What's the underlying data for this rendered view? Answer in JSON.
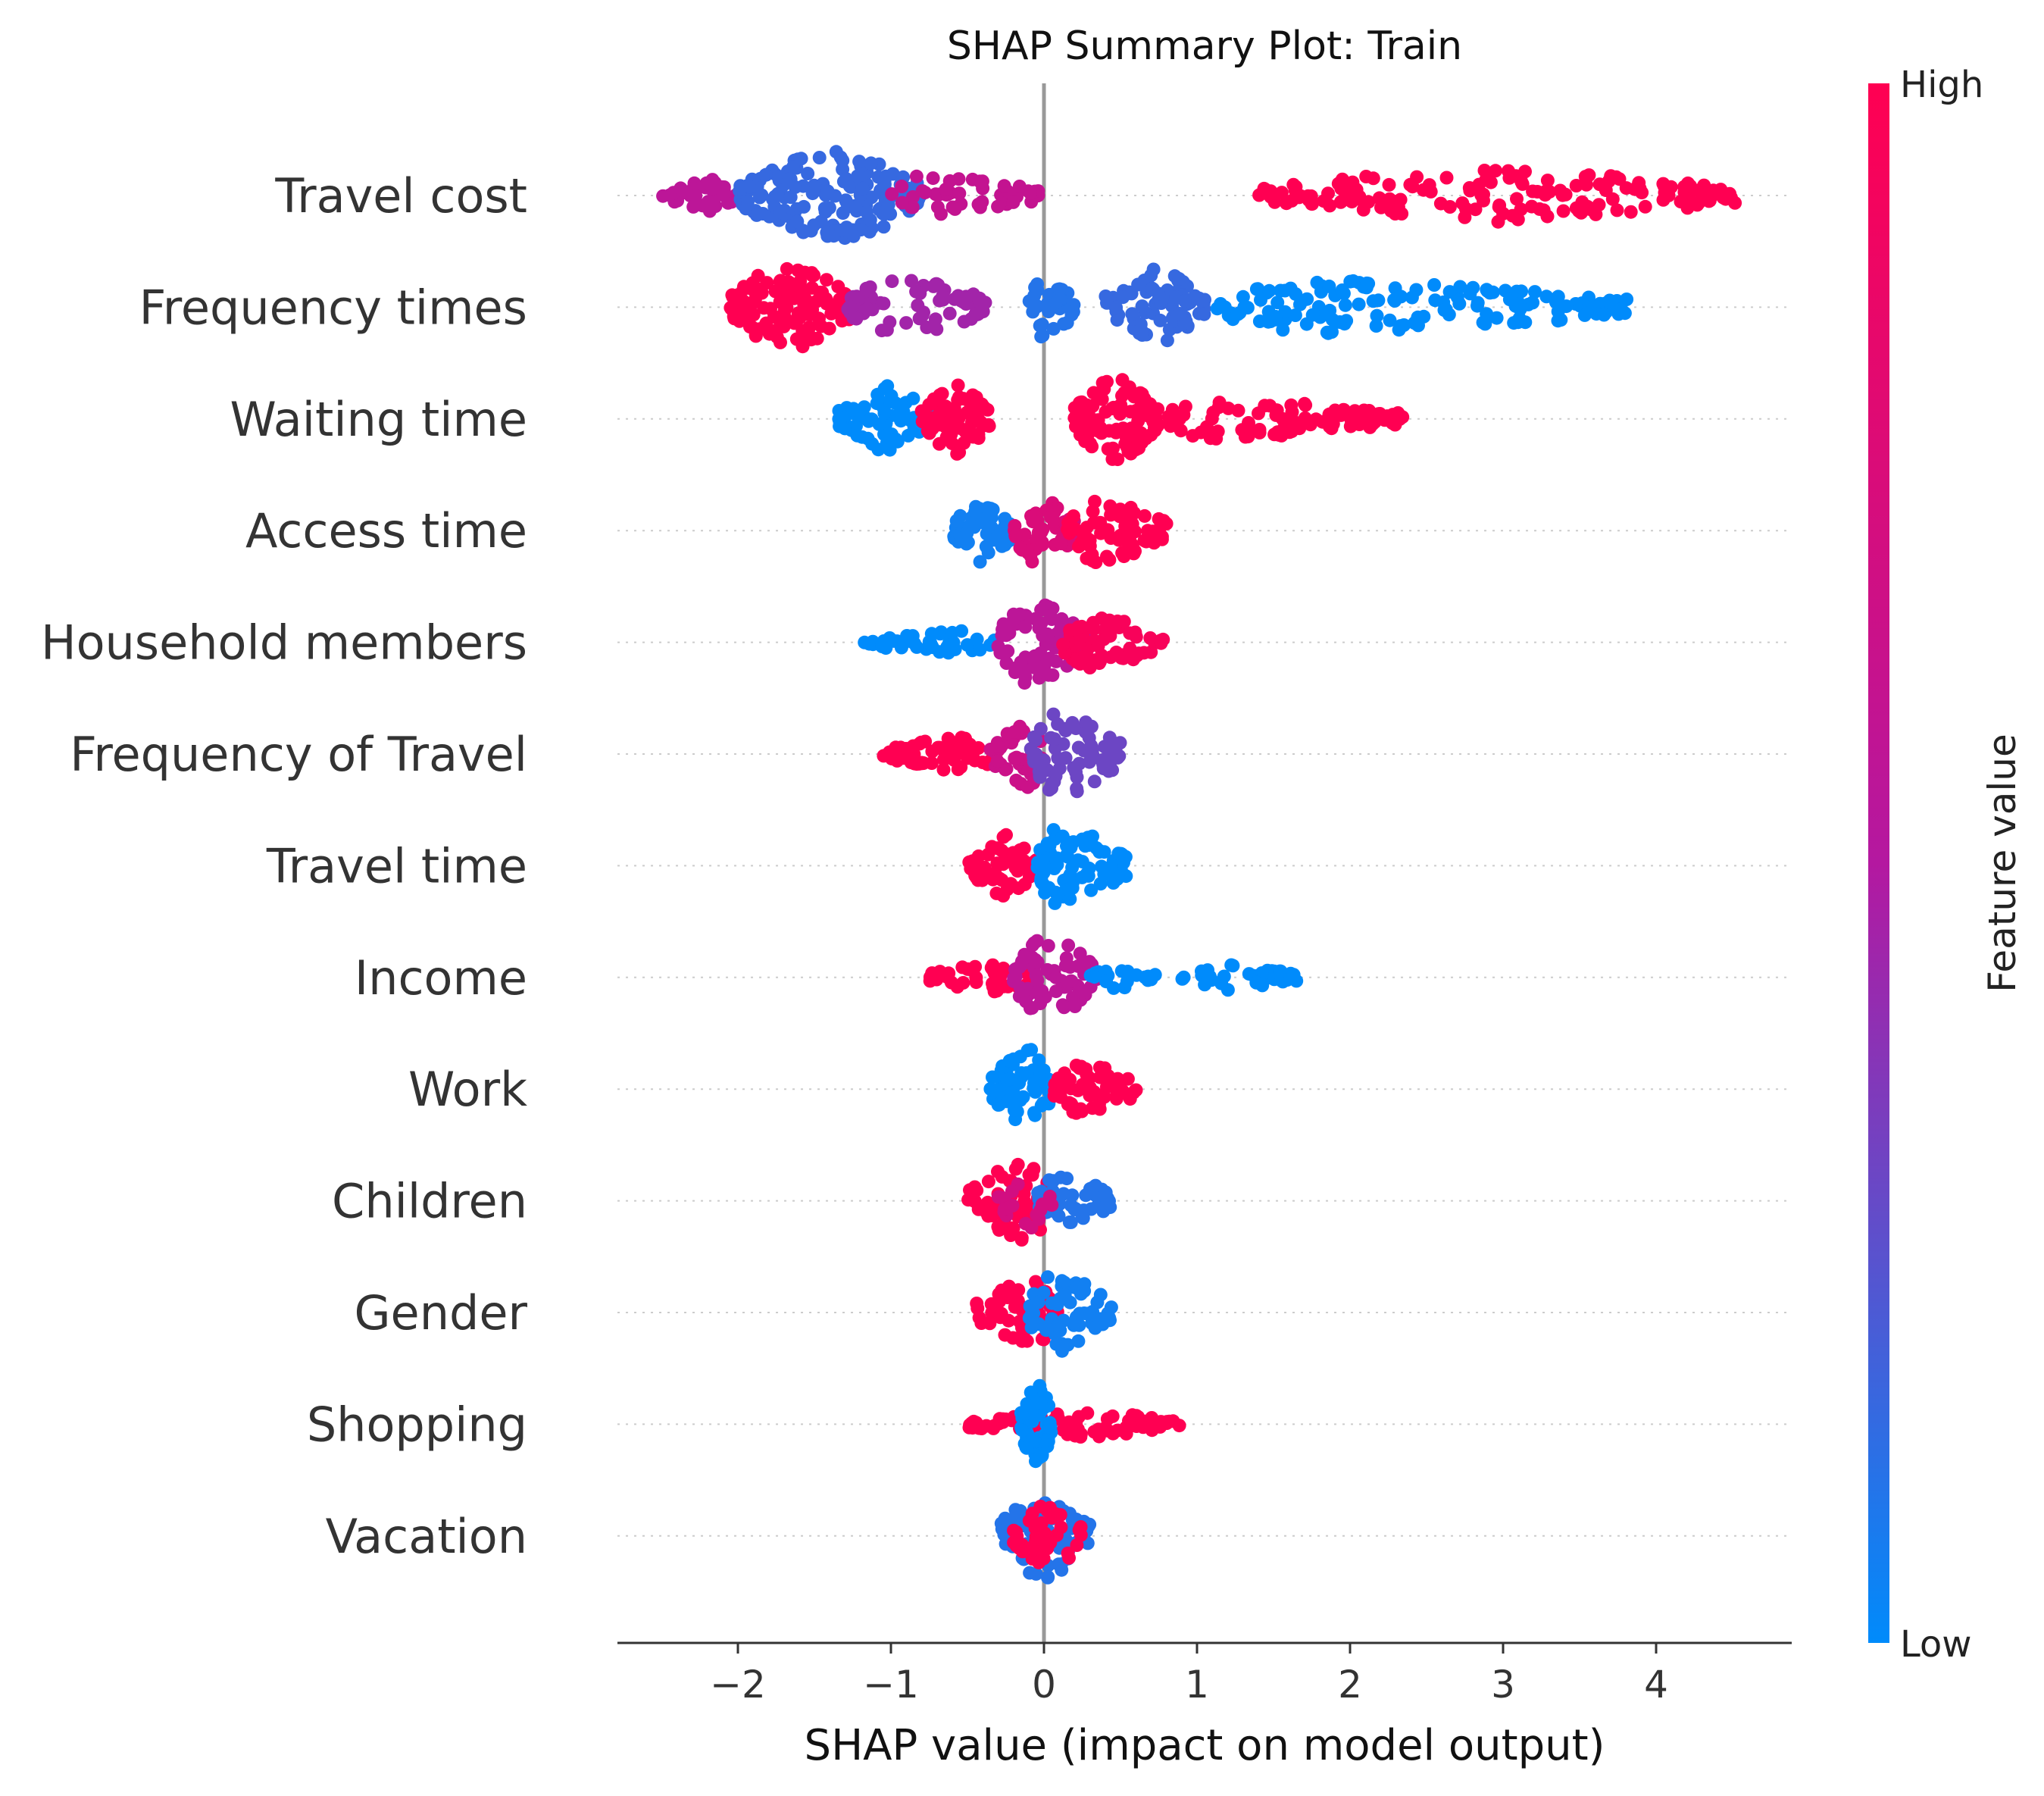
{
  "chart_data": {
    "type": "scatter",
    "subtype": "shap-beeswarm",
    "title": "SHAP Summary Plot: Train",
    "xlabel": "SHAP value (impact on model output)",
    "ylabel": "",
    "xlim": [
      -2.8,
      5.0
    ],
    "xticks": [
      {
        "value": -2,
        "label": "−2"
      },
      {
        "value": -1,
        "label": "−1"
      },
      {
        "value": 0,
        "label": "0"
      },
      {
        "value": 1,
        "label": "1"
      },
      {
        "value": 2,
        "label": "2"
      },
      {
        "value": 3,
        "label": "3"
      },
      {
        "value": 4,
        "label": "4"
      }
    ],
    "zero_line": 0,
    "colorbar": {
      "title": "Feature value",
      "high_label": "High",
      "low_label": "Low",
      "high_color": "#ff0052",
      "mid_color": "#b418a0",
      "low_color": "#008bfb"
    },
    "features": [
      {
        "name": "Travel cost",
        "clusters": [
          {
            "from": -2.5,
            "to": -2.0,
            "peak": -2.15,
            "spread": 0.35,
            "color": 0.55,
            "n": 40
          },
          {
            "from": -2.0,
            "to": -0.8,
            "peak": -1.35,
            "spread": 1.0,
            "color": 0.15,
            "n": 170
          },
          {
            "from": -1.0,
            "to": 0.0,
            "peak": -0.8,
            "spread": 0.45,
            "color": 0.6,
            "n": 50
          },
          {
            "from": 1.4,
            "to": 4.55,
            "peak": 2.8,
            "spread": 0.6,
            "color": 1.0,
            "n": 170
          }
        ]
      },
      {
        "name": "Frequency times",
        "clusters": [
          {
            "from": -2.05,
            "to": -1.25,
            "peak": -1.65,
            "spread": 1.0,
            "color": 1.0,
            "n": 130
          },
          {
            "from": -1.3,
            "to": -0.35,
            "peak": -0.95,
            "spread": 0.65,
            "color": 0.45,
            "n": 70
          },
          {
            "from": -0.1,
            "to": 0.2,
            "peak": 0.0,
            "spread": 0.7,
            "color": 0.1,
            "n": 35
          },
          {
            "from": 0.4,
            "to": 1.05,
            "peak": 0.75,
            "spread": 0.85,
            "color": 0.15,
            "n": 80
          },
          {
            "from": 1.1,
            "to": 3.85,
            "peak": 1.8,
            "spread": 0.6,
            "color": 0.0,
            "n": 150
          }
        ]
      },
      {
        "name": "Waiting time",
        "clusters": [
          {
            "from": -1.35,
            "to": -0.75,
            "peak": -1.0,
            "spread": 0.75,
            "color": 0.0,
            "n": 80
          },
          {
            "from": -0.8,
            "to": -0.35,
            "peak": -0.6,
            "spread": 0.8,
            "color": 1.0,
            "n": 70
          },
          {
            "from": 0.2,
            "to": 0.75,
            "peak": 0.45,
            "spread": 0.95,
            "color": 1.0,
            "n": 100
          },
          {
            "from": 0.7,
            "to": 2.35,
            "peak": 1.1,
            "spread": 0.45,
            "color": 1.0,
            "n": 100
          }
        ]
      },
      {
        "name": "Access time",
        "clusters": [
          {
            "from": -0.6,
            "to": -0.2,
            "peak": -0.42,
            "spread": 0.7,
            "color": 0.05,
            "n": 55
          },
          {
            "from": -0.2,
            "to": 0.2,
            "peak": -0.05,
            "spread": 0.8,
            "color": 0.75,
            "n": 50
          },
          {
            "from": 0.15,
            "to": 0.8,
            "peak": 0.35,
            "spread": 0.75,
            "color": 1.0,
            "n": 75
          }
        ]
      },
      {
        "name": "Household members",
        "clusters": [
          {
            "from": -1.2,
            "to": -0.3,
            "peak": -0.5,
            "spread": 0.25,
            "color": 0.0,
            "n": 45
          },
          {
            "from": -0.3,
            "to": 0.3,
            "peak": -0.1,
            "spread": 0.95,
            "color": 0.55,
            "n": 90
          },
          {
            "from": 0.1,
            "to": 0.8,
            "peak": 0.3,
            "spread": 0.6,
            "color": 0.95,
            "n": 60
          }
        ]
      },
      {
        "name": "Frequency of Travel",
        "clusters": [
          {
            "from": -1.05,
            "to": -0.3,
            "peak": -0.5,
            "spread": 0.4,
            "color": 1.0,
            "n": 60
          },
          {
            "from": -0.35,
            "to": 0.0,
            "peak": -0.1,
            "spread": 0.75,
            "color": 0.65,
            "n": 40
          },
          {
            "from": -0.1,
            "to": 0.5,
            "peak": 0.1,
            "spread": 0.95,
            "color": 0.3,
            "n": 70
          }
        ]
      },
      {
        "name": "Travel time",
        "clusters": [
          {
            "from": -0.5,
            "to": -0.05,
            "peak": -0.25,
            "spread": 0.7,
            "color": 1.0,
            "n": 55
          },
          {
            "from": -0.05,
            "to": 0.55,
            "peak": 0.07,
            "spread": 0.9,
            "color": 0.0,
            "n": 85
          }
        ]
      },
      {
        "name": "Income",
        "clusters": [
          {
            "from": -0.75,
            "to": -0.05,
            "peak": -0.2,
            "spread": 0.35,
            "color": 1.0,
            "n": 55
          },
          {
            "from": -0.2,
            "to": 0.35,
            "peak": 0.0,
            "spread": 0.95,
            "color": 0.55,
            "n": 75
          },
          {
            "from": 0.3,
            "to": 0.75,
            "peak": 0.45,
            "spread": 0.25,
            "color": 0.0,
            "n": 20
          },
          {
            "from": 0.9,
            "to": 1.65,
            "peak": 1.25,
            "spread": 0.3,
            "color": 0.0,
            "n": 40
          }
        ]
      },
      {
        "name": "Work",
        "clusters": [
          {
            "from": -0.35,
            "to": 0.05,
            "peak": -0.1,
            "spread": 0.9,
            "color": 0.0,
            "n": 60
          },
          {
            "from": 0.05,
            "to": 0.62,
            "peak": 0.25,
            "spread": 0.6,
            "color": 1.0,
            "n": 60
          }
        ]
      },
      {
        "name": "Children",
        "clusters": [
          {
            "from": -0.5,
            "to": 0.05,
            "peak": -0.12,
            "spread": 0.95,
            "color": 1.0,
            "n": 70
          },
          {
            "from": -0.05,
            "to": 0.45,
            "peak": 0.1,
            "spread": 0.6,
            "color": 0.1,
            "n": 50
          },
          {
            "from": -0.3,
            "to": 0.1,
            "peak": -0.1,
            "spread": 0.6,
            "color": 0.7,
            "n": 20
          }
        ]
      },
      {
        "name": "Gender",
        "clusters": [
          {
            "from": -0.45,
            "to": 0.1,
            "peak": -0.05,
            "spread": 0.75,
            "color": 1.0,
            "n": 60
          },
          {
            "from": -0.1,
            "to": 0.45,
            "peak": 0.05,
            "spread": 0.9,
            "color": 0.05,
            "n": 60
          }
        ]
      },
      {
        "name": "Shopping",
        "clusters": [
          {
            "from": -0.5,
            "to": 0.9,
            "peak": 0.3,
            "spread": 0.28,
            "color": 1.0,
            "n": 90
          },
          {
            "from": -0.15,
            "to": 0.05,
            "peak": -0.05,
            "spread": 1.0,
            "color": 0.0,
            "n": 55
          }
        ]
      },
      {
        "name": "Vacation",
        "clusters": [
          {
            "from": -0.3,
            "to": 0.3,
            "peak": 0.0,
            "spread": 0.95,
            "color": 0.1,
            "n": 70
          },
          {
            "from": -0.2,
            "to": 0.25,
            "peak": 0.05,
            "spread": 0.75,
            "color": 1.0,
            "n": 45
          }
        ]
      }
    ]
  }
}
